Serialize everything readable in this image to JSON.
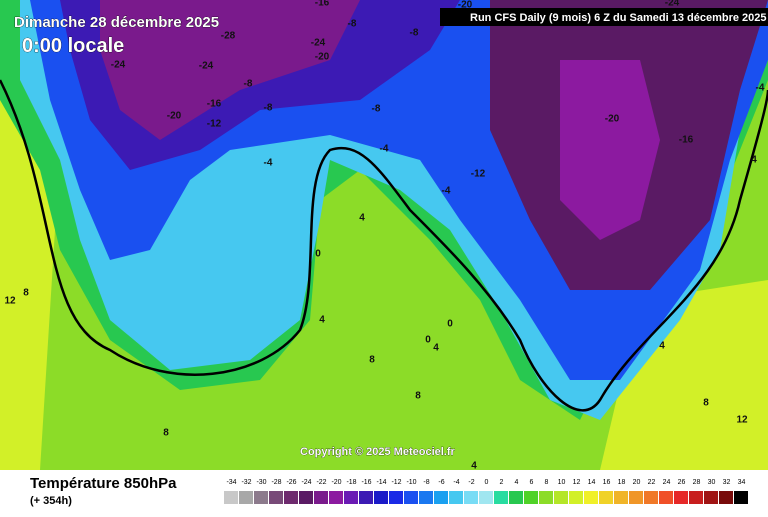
{
  "header": {
    "date": "Dimanche 28 décembre 2025",
    "time": "0:00 locale",
    "run": "Run CFS Daily (9 mois) 6 Z du Samedi 13 décembre 2025"
  },
  "footer": {
    "title": "Température 850hPa",
    "lead": "(+ 354h)",
    "copyright": "Copyright © 2025 Meteociel.fr"
  },
  "legend": {
    "ticks": [
      -34,
      -32,
      -30,
      -28,
      -26,
      -24,
      -22,
      -20,
      -18,
      -16,
      -14,
      -12,
      -10,
      -8,
      -6,
      -4,
      -2,
      0,
      2,
      4,
      6,
      8,
      10,
      12,
      14,
      16,
      18,
      20,
      22,
      24,
      26,
      28,
      30,
      32,
      34
    ],
    "colors": [
      "#c8c8c8",
      "#a8a8a8",
      "#8c7a8c",
      "#784a78",
      "#6e2a6e",
      "#5a1a64",
      "#7a1a8c",
      "#8c1aa0",
      "#6a1ab4",
      "#3c1ab4",
      "#1a1ac8",
      "#1a2ae6",
      "#1a50f0",
      "#1a78f0",
      "#1aa0f0",
      "#46c8f0",
      "#78dcf5",
      "#a0e6f0",
      "#28dca0",
      "#28c850",
      "#50d228",
      "#8cdc28",
      "#b4e628",
      "#d2f028",
      "#f0f028",
      "#f0d228",
      "#f0b428",
      "#f09628",
      "#f07828",
      "#f05028",
      "#e62828",
      "#c81e1e",
      "#a01414",
      "#780a0a",
      "#000000"
    ]
  },
  "contour_labels": [
    -24,
    -28,
    -24,
    -24,
    -20,
    -16,
    -8,
    -8,
    -20,
    -20,
    -16,
    -12,
    -8,
    -8,
    -8,
    -4,
    -4,
    -4,
    -12,
    -20,
    -16,
    -24,
    -4,
    4,
    4,
    0,
    4,
    8,
    12,
    8,
    0,
    0,
    4,
    8,
    8,
    4,
    8,
    12,
    4
  ]
}
